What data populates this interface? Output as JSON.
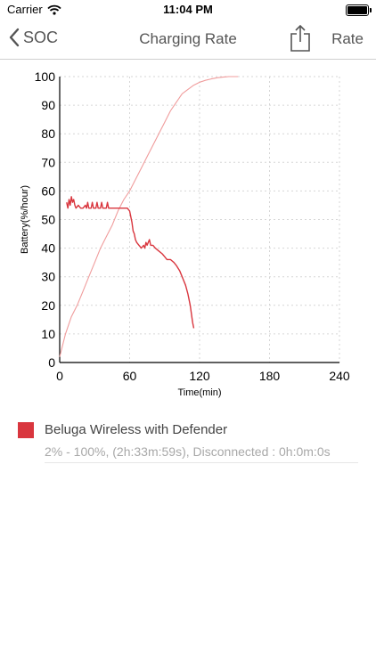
{
  "status_bar": {
    "carrier": "Carrier",
    "time": "11:04 PM"
  },
  "nav": {
    "back_label": "SOC",
    "title": "Charging Rate",
    "right_label": "Rate"
  },
  "chart_data": {
    "type": "line",
    "xlabel": "Time(min)",
    "ylabel": "Battery(%/hour)",
    "xlim": [
      0,
      240
    ],
    "ylim": [
      0,
      100
    ],
    "x_ticks": [
      "0",
      "60",
      "120",
      "180",
      "240"
    ],
    "y_ticks": [
      "0",
      "10",
      "20",
      "30",
      "40",
      "50",
      "60",
      "70",
      "80",
      "90",
      "100"
    ],
    "grid": true,
    "series": [
      {
        "name": "Beluga Wireless with Defender",
        "kind": "soc",
        "color": "#f09c9c",
        "points": [
          [
            0,
            2
          ],
          [
            5,
            10
          ],
          [
            10,
            16
          ],
          [
            15,
            20
          ],
          [
            20,
            25
          ],
          [
            25,
            30
          ],
          [
            30,
            35
          ],
          [
            35,
            40
          ],
          [
            40,
            44
          ],
          [
            45,
            48
          ],
          [
            50,
            53
          ],
          [
            55,
            57
          ],
          [
            60,
            60
          ],
          [
            65,
            64
          ],
          [
            70,
            68
          ],
          [
            75,
            72
          ],
          [
            80,
            76
          ],
          [
            85,
            80
          ],
          [
            90,
            84
          ],
          [
            95,
            88
          ],
          [
            100,
            91
          ],
          [
            105,
            94
          ],
          [
            110,
            95.5
          ],
          [
            115,
            97
          ],
          [
            120,
            98
          ],
          [
            125,
            98.7
          ],
          [
            130,
            99.2
          ],
          [
            135,
            99.6
          ],
          [
            140,
            99.8
          ],
          [
            145,
            100
          ],
          [
            153,
            100
          ]
        ]
      },
      {
        "name": "Beluga Wireless with Defender",
        "kind": "rate",
        "color": "#d9363e",
        "points": [
          [
            6,
            56
          ],
          [
            7,
            54
          ],
          [
            8,
            57
          ],
          [
            9,
            55
          ],
          [
            10,
            58
          ],
          [
            11,
            56
          ],
          [
            12,
            57
          ],
          [
            13,
            55
          ],
          [
            14,
            54
          ],
          [
            16,
            55
          ],
          [
            18,
            54
          ],
          [
            20,
            54
          ],
          [
            22,
            55
          ],
          [
            23,
            54
          ],
          [
            24,
            56
          ],
          [
            25,
            54
          ],
          [
            27,
            54
          ],
          [
            28,
            56
          ],
          [
            29,
            54
          ],
          [
            31,
            54
          ],
          [
            32,
            56
          ],
          [
            33,
            54
          ],
          [
            35,
            54
          ],
          [
            36,
            56
          ],
          [
            37,
            54
          ],
          [
            40,
            54
          ],
          [
            41,
            56
          ],
          [
            42,
            54
          ],
          [
            45,
            54
          ],
          [
            50,
            54
          ],
          [
            55,
            54
          ],
          [
            58,
            54
          ],
          [
            60,
            53
          ],
          [
            61,
            51
          ],
          [
            62,
            49
          ],
          [
            63,
            46
          ],
          [
            64,
            45
          ],
          [
            65,
            43
          ],
          [
            66,
            42
          ],
          [
            68,
            41
          ],
          [
            70,
            40
          ],
          [
            72,
            41
          ],
          [
            73,
            40
          ],
          [
            74,
            42
          ],
          [
            75,
            41
          ],
          [
            76,
            42
          ],
          [
            77,
            43
          ],
          [
            78,
            41
          ],
          [
            80,
            41
          ],
          [
            82,
            40
          ],
          [
            85,
            39
          ],
          [
            88,
            38
          ],
          [
            90,
            37
          ],
          [
            92,
            36
          ],
          [
            95,
            36
          ],
          [
            98,
            35
          ],
          [
            100,
            34
          ],
          [
            103,
            32
          ],
          [
            106,
            29
          ],
          [
            108,
            27
          ],
          [
            110,
            24
          ],
          [
            112,
            20
          ],
          [
            114,
            14
          ],
          [
            115,
            12
          ]
        ]
      }
    ]
  },
  "legend": {
    "name": "Beluga Wireless with Defender",
    "detail": "2% - 100%, (2h:33m:59s), Disconnected : 0h:0m:0s",
    "color": "#d9363e"
  }
}
